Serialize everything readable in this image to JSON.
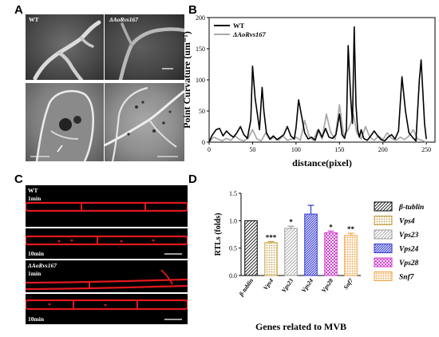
{
  "panels": {
    "a": {
      "label": "A",
      "sem_wt_label": "WT",
      "sem_mut_label": "ΔAoRvs167"
    },
    "b": {
      "label": "B"
    },
    "c": {
      "label": "C",
      "wt_label": "WT",
      "mut_label": "ΔAoRvs167",
      "time_1": "1min",
      "time_10": "10min"
    },
    "d": {
      "label": "D"
    }
  },
  "colors": {
    "wt": "#000000",
    "mutant": "#aaaaaa",
    "fm464": "#e0191e",
    "vps4": "#c8a34a",
    "vps23": "#9c9c9c",
    "vps24": "#2f35d0",
    "vps28": "#d43bd0",
    "snf7": "#f0a040"
  },
  "chart_data": [
    {
      "type": "line",
      "panel": "B",
      "ylabel": "Point Curvature (um⁻¹)",
      "xlabel": "distance(pixel)",
      "xlim": [
        0,
        260
      ],
      "ylim": [
        0,
        200
      ],
      "xticks": [
        0,
        50,
        100,
        150,
        200,
        250
      ],
      "yticks": [
        0,
        50,
        100,
        150,
        200
      ],
      "legend_position": "top-left",
      "series": [
        {
          "name": "WT",
          "x": [
            0,
            3,
            8,
            12,
            16,
            20,
            24,
            28,
            32,
            36,
            40,
            44,
            48,
            50,
            53,
            56,
            58,
            61,
            63,
            66,
            70,
            74,
            78,
            82,
            86,
            90,
            94,
            98,
            100,
            103,
            106,
            110,
            114,
            118,
            122,
            126,
            130,
            134,
            138,
            142,
            146,
            150,
            153,
            156,
            158,
            160,
            163,
            165,
            167,
            169,
            171,
            173,
            175,
            178,
            182,
            186,
            190,
            194,
            198,
            202,
            206,
            210,
            214,
            218,
            222,
            226,
            230,
            234,
            238,
            242,
            244,
            246,
            248,
            250
          ],
          "y": [
            0,
            10,
            20,
            22,
            10,
            18,
            12,
            8,
            15,
            25,
            12,
            6,
            35,
            122,
            70,
            40,
            20,
            88,
            50,
            15,
            5,
            10,
            4,
            8,
            12,
            25,
            10,
            5,
            22,
            68,
            45,
            15,
            5,
            8,
            3,
            20,
            8,
            22,
            8,
            6,
            12,
            45,
            12,
            6,
            20,
            155,
            70,
            30,
            185,
            60,
            20,
            8,
            20,
            6,
            3,
            10,
            18,
            10,
            4,
            2,
            8,
            12,
            5,
            18,
            105,
            50,
            15,
            8,
            2,
            100,
            132,
            80,
            30,
            5
          ]
        },
        {
          "name": "ΔAoRvs167",
          "x": [
            0,
            5,
            10,
            15,
            20,
            25,
            30,
            35,
            40,
            45,
            50,
            55,
            60,
            65,
            70,
            75,
            80,
            85,
            90,
            95,
            100,
            105,
            110,
            115,
            120,
            125,
            130,
            135,
            140,
            145,
            150,
            155,
            160,
            163,
            166,
            170,
            175,
            180,
            185,
            190,
            195,
            200,
            205,
            210,
            215,
            220,
            225,
            230,
            235,
            240,
            245,
            250
          ],
          "y": [
            0,
            8,
            5,
            2,
            6,
            3,
            10,
            4,
            2,
            6,
            20,
            5,
            2,
            15,
            4,
            8,
            3,
            10,
            3,
            5,
            8,
            3,
            35,
            10,
            3,
            20,
            5,
            45,
            15,
            5,
            60,
            10,
            20,
            30,
            45,
            15,
            5,
            25,
            8,
            3,
            10,
            4,
            15,
            6,
            3,
            8,
            4,
            10,
            20,
            5,
            3,
            0
          ]
        }
      ]
    },
    {
      "type": "bar",
      "panel": "D",
      "ylabel": "RTLs (folds)",
      "xlabel": "Genes related to MVB",
      "ylim": [
        0,
        1.5
      ],
      "yticks": [
        0.0,
        0.5,
        1.0,
        1.5
      ],
      "categories": [
        "β-tublin",
        "Vps4",
        "Vps23",
        "Vps24",
        "Vps28",
        "Snf7"
      ],
      "values": [
        1.0,
        0.6,
        0.86,
        1.12,
        0.78,
        0.73
      ],
      "errors": [
        0,
        0.02,
        0.04,
        0.16,
        0.03,
        0.04
      ],
      "significance": [
        "",
        "***",
        "*",
        "",
        "*",
        "**"
      ],
      "legend": [
        "β-tublin",
        "Vps4",
        "Vps23",
        "Vps24",
        "Vps28",
        "Snf7"
      ]
    }
  ]
}
